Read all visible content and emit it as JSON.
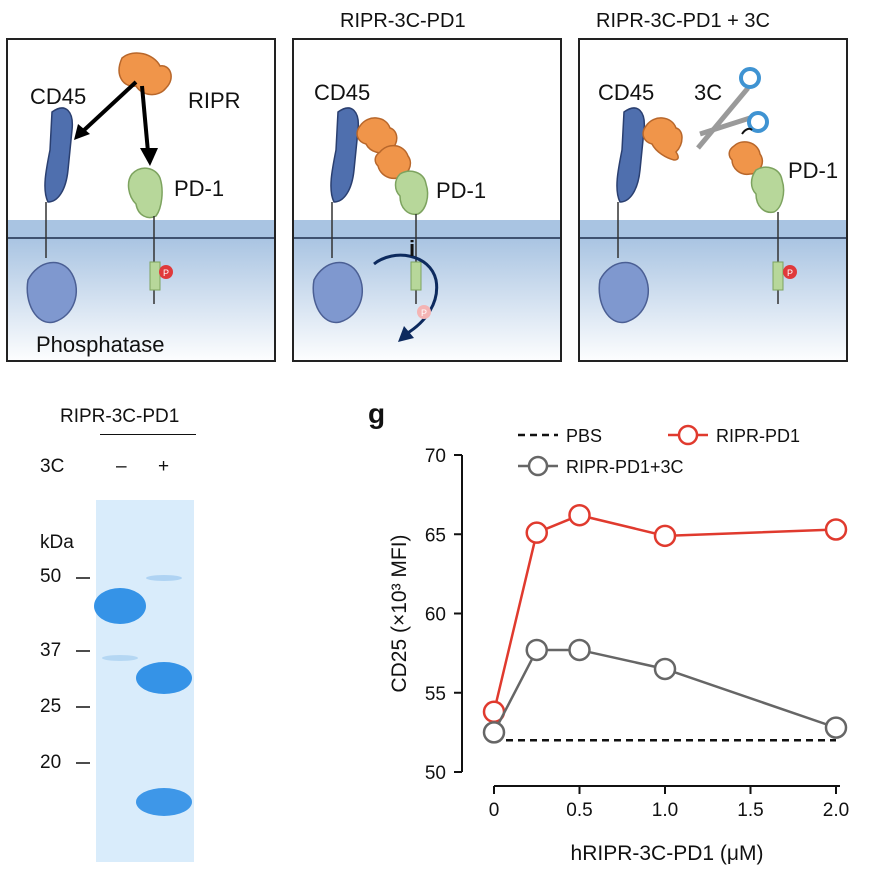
{
  "schematic": {
    "panel1": {
      "labels": {
        "cd45": "CD45",
        "ripr": "RIPR",
        "pd1": "PD-1",
        "phosphatase": "Phosphatase",
        "p": "P"
      }
    },
    "panel2": {
      "title": "RIPR-3C-PD1",
      "labels": {
        "cd45": "CD45",
        "pd1": "PD-1",
        "inhibit": "i",
        "p": "P"
      }
    },
    "panel3": {
      "title": "RIPR-3C-PD1 + 3C",
      "labels": {
        "cd45": "CD45",
        "three_c": "3C",
        "pd1": "PD-1",
        "p": "P"
      }
    },
    "colors": {
      "membrane": "#a9c4e2",
      "cd45": "#4f6fae",
      "ripr": "#f0954a",
      "pd1": "#b7d79a",
      "phosphatase": "#7f98cf",
      "phospho": "#e0393b",
      "arrow_dark": "#0d2a5e"
    }
  },
  "gel": {
    "sample": "RIPR-3C-PD1",
    "row_label": "3C",
    "lanes": [
      "–",
      "+"
    ],
    "unit": "kDa",
    "markers": [
      "50",
      "37",
      "25",
      "20"
    ],
    "colors": {
      "background": "#d9ecfb",
      "band": "#2c8ee6"
    }
  },
  "figure_labels": {
    "panel_letter": "g"
  },
  "chart_data": {
    "type": "line",
    "xlabel": "hRIPR-3C-PD1 (μM)",
    "ylabel": "CD25 (×10³ MFI)",
    "x_ticks": [
      "0",
      "0.5",
      "1.0",
      "1.5",
      "2.0"
    ],
    "y_ticks": [
      "50",
      "55",
      "60",
      "65",
      "70"
    ],
    "xlim": [
      0,
      2.0
    ],
    "ylim": [
      50,
      70
    ],
    "series": [
      {
        "name": "RIPR-PD1",
        "color": "#e03a2e",
        "x": [
          0,
          0.25,
          0.5,
          1.0,
          2.0
        ],
        "y": [
          53.8,
          65.1,
          66.2,
          64.9,
          65.3
        ]
      },
      {
        "name": "RIPR-PD1+3C",
        "color": "#666666",
        "x": [
          0,
          0.25,
          0.5,
          1.0,
          2.0
        ],
        "y": [
          52.5,
          57.7,
          57.7,
          56.5,
          52.8
        ]
      }
    ],
    "reference": {
      "name": "PBS",
      "y": 52.0,
      "style": "dashed"
    },
    "legend_position": "top"
  }
}
